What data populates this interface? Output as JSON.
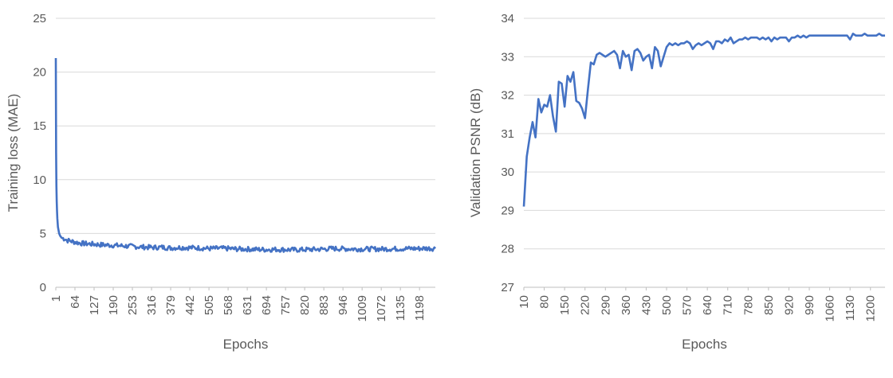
{
  "chart_data": [
    {
      "type": "line",
      "title": "",
      "xlabel": "Epochs",
      "ylabel": "Training loss (MAE)",
      "ylim": [
        0,
        25
      ],
      "yticks": [
        "0",
        "5",
        "10",
        "15",
        "20",
        "25"
      ],
      "xlim": [
        1,
        1250
      ],
      "categories": [
        "1",
        "64",
        "127",
        "190",
        "253",
        "316",
        "379",
        "442",
        "505",
        "568",
        "631",
        "694",
        "757",
        "820",
        "883",
        "946",
        "1009",
        "1072",
        "1135",
        "1198"
      ],
      "grid": true,
      "color": "#4472c4",
      "series": [
        {
          "x": [
            1,
            2,
            3,
            4,
            5,
            6,
            8,
            10,
            12,
            15,
            20,
            25,
            30,
            40,
            50,
            64,
            80,
            100,
            127,
            150,
            190,
            220,
            253,
            280,
            316,
            350,
            379,
            410,
            442,
            470,
            505,
            540,
            568,
            600,
            631,
            660,
            694,
            720,
            757,
            790,
            820,
            850,
            883,
            910,
            946,
            980,
            1009,
            1040,
            1072,
            1100,
            1135,
            1160,
            1198,
            1220,
            1250
          ],
          "values": [
            21.3,
            12.5,
            9.4,
            8.0,
            7.1,
            6.4,
            5.6,
            5.3,
            5.0,
            4.8,
            4.6,
            4.55,
            4.5,
            4.35,
            4.3,
            4.2,
            4.1,
            4.05,
            4.0,
            3.95,
            3.9,
            3.85,
            3.8,
            3.75,
            3.7,
            3.72,
            3.65,
            3.7,
            3.68,
            3.66,
            3.6,
            3.62,
            3.6,
            3.55,
            3.55,
            3.52,
            3.5,
            3.52,
            3.5,
            3.48,
            3.5,
            3.52,
            3.55,
            3.6,
            3.58,
            3.56,
            3.55,
            3.56,
            3.55,
            3.57,
            3.58,
            3.6,
            3.6,
            3.62,
            3.6
          ]
        }
      ]
    },
    {
      "type": "line",
      "title": "",
      "xlabel": "Epochs",
      "ylabel": "Validation PSNR (dB)",
      "ylim": [
        27,
        34
      ],
      "yticks": [
        "27",
        "28",
        "29",
        "30",
        "31",
        "32",
        "33",
        "34"
      ],
      "xlim": [
        10,
        1250
      ],
      "categories": [
        "10",
        "80",
        "150",
        "220",
        "290",
        "360",
        "430",
        "500",
        "570",
        "640",
        "710",
        "780",
        "850",
        "920",
        "990",
        "1060",
        "1130",
        "1200"
      ],
      "grid": true,
      "color": "#4472c4",
      "series": [
        {
          "x": [
            10,
            20,
            30,
            40,
            50,
            60,
            70,
            80,
            90,
            100,
            110,
            120,
            130,
            140,
            150,
            160,
            170,
            180,
            190,
            200,
            210,
            220,
            230,
            240,
            250,
            260,
            270,
            280,
            290,
            300,
            310,
            320,
            330,
            340,
            350,
            360,
            370,
            380,
            390,
            400,
            410,
            420,
            430,
            440,
            450,
            460,
            470,
            480,
            490,
            500,
            510,
            520,
            530,
            540,
            550,
            560,
            570,
            580,
            590,
            600,
            610,
            620,
            630,
            640,
            650,
            660,
            670,
            680,
            690,
            700,
            710,
            720,
            730,
            740,
            750,
            760,
            770,
            780,
            790,
            800,
            810,
            820,
            830,
            840,
            850,
            860,
            870,
            880,
            890,
            900,
            910,
            920,
            930,
            940,
            950,
            960,
            970,
            980,
            990,
            1000,
            1010,
            1020,
            1030,
            1040,
            1050,
            1060,
            1070,
            1080,
            1090,
            1100,
            1110,
            1120,
            1130,
            1140,
            1150,
            1160,
            1170,
            1180,
            1190,
            1200,
            1210,
            1220,
            1230,
            1240,
            1250
          ],
          "values": [
            29.1,
            30.4,
            30.9,
            31.3,
            30.9,
            31.9,
            31.55,
            31.75,
            31.7,
            32.0,
            31.45,
            31.05,
            32.35,
            32.3,
            31.7,
            32.5,
            32.35,
            32.6,
            31.85,
            31.8,
            31.65,
            31.4,
            32.15,
            32.85,
            32.8,
            33.05,
            33.1,
            33.05,
            33.0,
            33.05,
            33.1,
            33.15,
            33.05,
            32.7,
            33.15,
            33.0,
            33.05,
            32.65,
            33.15,
            33.2,
            33.1,
            32.9,
            33.0,
            33.05,
            32.7,
            33.25,
            33.15,
            32.75,
            33.0,
            33.25,
            33.35,
            33.3,
            33.35,
            33.3,
            33.35,
            33.35,
            33.4,
            33.35,
            33.2,
            33.3,
            33.35,
            33.3,
            33.35,
            33.4,
            33.35,
            33.2,
            33.4,
            33.4,
            33.35,
            33.45,
            33.4,
            33.5,
            33.35,
            33.4,
            33.45,
            33.45,
            33.5,
            33.45,
            33.5,
            33.5,
            33.5,
            33.45,
            33.5,
            33.45,
            33.5,
            33.4,
            33.5,
            33.45,
            33.5,
            33.5,
            33.5,
            33.4,
            33.5,
            33.5,
            33.55,
            33.5,
            33.55,
            33.5,
            33.55,
            33.55,
            33.55,
            33.55,
            33.55,
            33.55,
            33.55,
            33.55,
            33.55,
            33.55,
            33.55,
            33.55,
            33.55,
            33.55,
            33.45,
            33.6,
            33.55,
            33.55,
            33.55,
            33.6,
            33.55,
            33.55,
            33.55,
            33.55,
            33.6,
            33.55,
            33.55
          ]
        }
      ]
    }
  ]
}
